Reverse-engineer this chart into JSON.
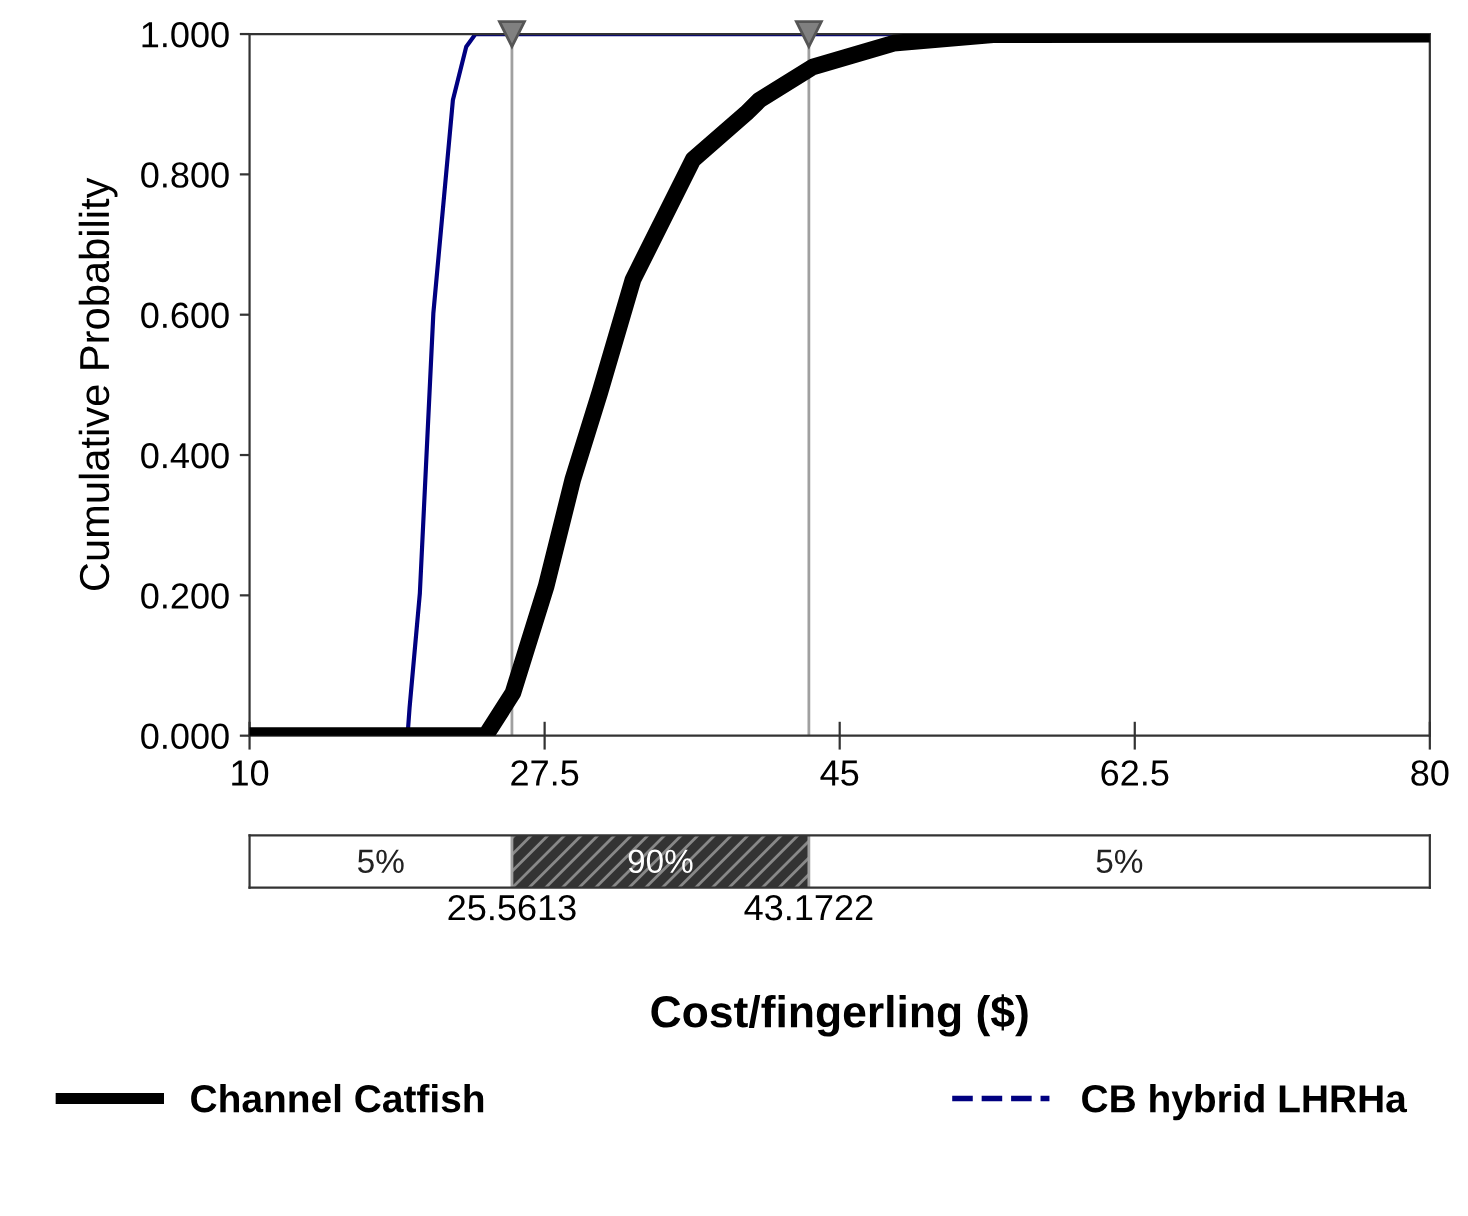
{
  "chart_data": {
    "type": "line",
    "xlabel": "Cost/fingerling ($)",
    "ylabel": "Cumulative Probability",
    "series": [
      {
        "name": "Channel Catfish",
        "color": "#000000",
        "x": [
          10,
          24.0,
          25.62,
          27.59,
          29.17,
          30.76,
          32.74,
          36.3,
          39.45,
          40.25,
          43.4,
          48.2,
          54.1,
          80
        ],
        "values": [
          0,
          0,
          0.061,
          0.213,
          0.365,
          0.488,
          0.65,
          0.821,
          0.887,
          0.906,
          0.953,
          0.987,
          0.999,
          1
        ]
      },
      {
        "name": "CB hybrid LHRHa",
        "color": "#000080",
        "x": [
          10,
          19.37,
          19.49,
          20.1,
          20.9,
          22.06,
          22.85,
          23.4,
          80
        ],
        "values": [
          0,
          0,
          0.04,
          0.203,
          0.602,
          0.906,
          0.982,
          1,
          1
        ]
      }
    ],
    "xlim": [
      10,
      80
    ],
    "xticks": [
      10,
      27.5,
      45,
      62.5,
      80
    ],
    "ylim": [
      0,
      1
    ],
    "yticks": [
      {
        "value": 0,
        "label": "0.000"
      },
      {
        "value": 0.2,
        "label": "0.200"
      },
      {
        "value": 0.4,
        "label": "0.400"
      },
      {
        "value": 0.6,
        "label": "0.600"
      },
      {
        "value": 0.8,
        "label": "0.800"
      },
      {
        "value": 1,
        "label": "1.000"
      }
    ],
    "ref_lines": [
      {
        "axis": "x",
        "value": 25.5613,
        "color": "#a0a0a0"
      },
      {
        "axis": "x",
        "value": 43.1722,
        "color": "#a0a0a0"
      }
    ],
    "annotations": [
      "5%",
      "90%",
      "5%",
      "25.5613",
      "43.1722"
    ],
    "grid": false,
    "legend": "bottom",
    "marker": "none",
    "line_style": "solid"
  }
}
